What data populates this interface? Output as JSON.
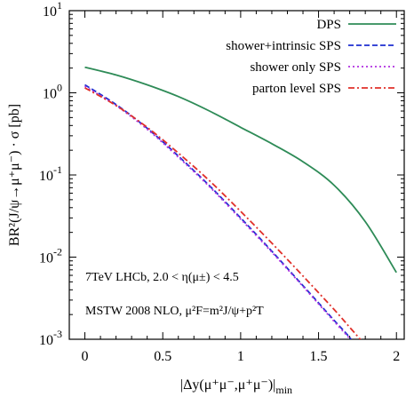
{
  "chart_data": {
    "type": "line",
    "xlabel": "|Δy(μ⁺μ⁻,μ⁺μ⁻)|",
    "xlabel_subscript": "min",
    "ylabel": "BR²(J/ψ→μ⁺μ⁻) · σ [pb]",
    "xlim": [
      -0.1,
      2.05
    ],
    "ylim": [
      0.001,
      10
    ],
    "yscale": "log",
    "x_ticks": [
      {
        "value": 0,
        "label": "0"
      },
      {
        "value": 0.5,
        "label": "0.5"
      },
      {
        "value": 1,
        "label": "1"
      },
      {
        "value": 1.5,
        "label": "1.5"
      },
      {
        "value": 2,
        "label": "2"
      }
    ],
    "y_ticks": [
      {
        "value": 0.001,
        "base": "10",
        "exp": "-3"
      },
      {
        "value": 0.01,
        "base": "10",
        "exp": "-2"
      },
      {
        "value": 0.1,
        "base": "10",
        "exp": "-1"
      },
      {
        "value": 1,
        "base": "10",
        "exp": "0"
      },
      {
        "value": 10,
        "base": "10",
        "exp": "1"
      }
    ],
    "legend_position": "top-right",
    "annotations": [
      "7TeV LHCb, 2.0 < η(μ±) < 4.5",
      "MSTW 2008 NLO, μ²F=m²J/ψ+p²T"
    ],
    "series": [
      {
        "name": "DPS",
        "color": "#2e8b57",
        "dash": "solid",
        "x": [
          0,
          0.2,
          0.4,
          0.6,
          0.8,
          1.0,
          1.2,
          1.4,
          1.6,
          1.8,
          2.0
        ],
        "y": [
          2.05,
          1.65,
          1.25,
          0.9,
          0.6,
          0.38,
          0.24,
          0.145,
          0.075,
          0.027,
          0.0065
        ]
      },
      {
        "name": "shower+intrinsic SPS",
        "color": "#1f2fd0",
        "dash": "dashed",
        "x": [
          0,
          0.2,
          0.4,
          0.6,
          0.8,
          1.0,
          1.2,
          1.4,
          1.6,
          1.7,
          1.76
        ],
        "y": [
          1.25,
          0.72,
          0.37,
          0.17,
          0.074,
          0.03,
          0.0118,
          0.0045,
          0.0017,
          0.00105,
          0.00072
        ]
      },
      {
        "name": "shower only SPS",
        "color": "#b030e0",
        "dash": "dotted",
        "x": [
          0,
          0.2,
          0.4,
          0.6,
          0.8,
          1.0,
          1.2,
          1.4,
          1.6,
          1.7,
          1.77
        ],
        "y": [
          1.2,
          0.7,
          0.36,
          0.165,
          0.072,
          0.029,
          0.0115,
          0.0044,
          0.00165,
          0.00102,
          0.0007
        ]
      },
      {
        "name": "parton level SPS",
        "color": "#e0302a",
        "dash": "dashdot",
        "x": [
          0,
          0.2,
          0.4,
          0.6,
          0.8,
          1.0,
          1.2,
          1.4,
          1.6,
          1.7,
          1.8
        ],
        "y": [
          1.15,
          0.7,
          0.38,
          0.185,
          0.085,
          0.036,
          0.0148,
          0.0059,
          0.0023,
          0.0014,
          0.00085
        ]
      }
    ]
  }
}
